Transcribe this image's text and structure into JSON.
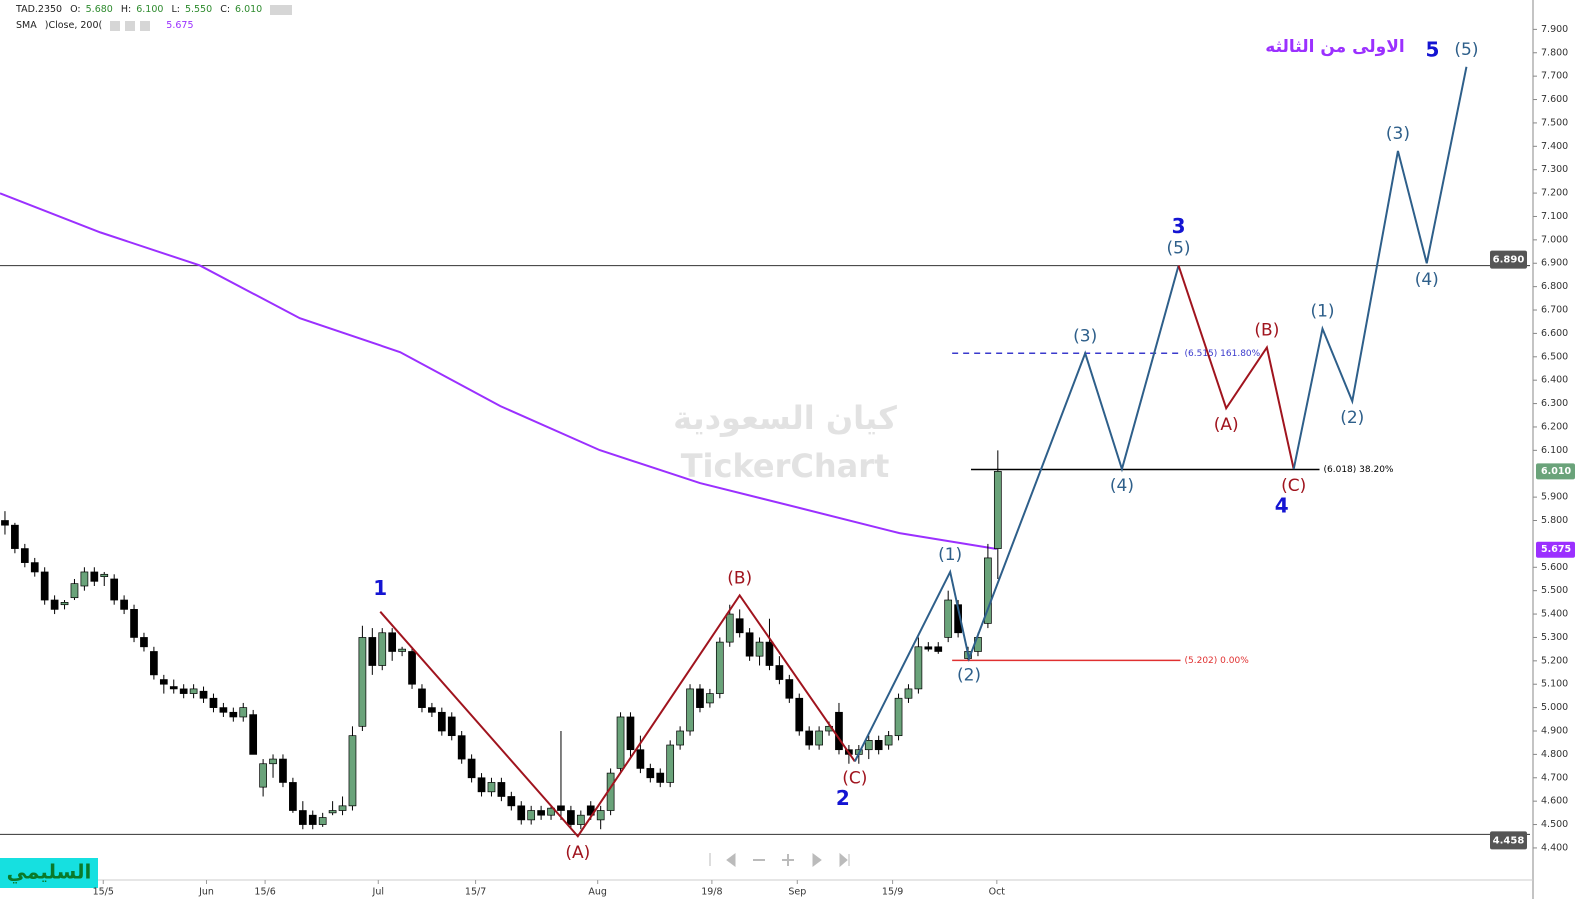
{
  "header": {
    "line1": [
      "TAD.2350",
      "O:",
      "5.680",
      "H:",
      "6.100",
      "L:",
      "5.550",
      "C:",
      "6.010"
    ],
    "line2": [
      "SMA",
      ")Close, 200(",
      "5.675"
    ]
  },
  "watermark": [
    "كيان السعودية",
    "TickerChart"
  ],
  "author": "السليمي",
  "chart_data": {
    "type": "candlestick",
    "title": "الاولى من الثالثه",
    "xlim": [
      -0.5,
      153.6
    ],
    "ylim": [
      4.28,
      7.97
    ],
    "xticks": [
      {
        "value": 9.9,
        "label": "15/5"
      },
      {
        "value": 20.3,
        "label": "Jun"
      },
      {
        "value": 26.2,
        "label": "15/6"
      },
      {
        "value": 37.6,
        "label": "Jul"
      },
      {
        "value": 47.4,
        "label": "15/7"
      },
      {
        "value": 59.7,
        "label": "Aug"
      },
      {
        "value": 71.2,
        "label": "19/8"
      },
      {
        "value": 79.8,
        "label": "Sep"
      },
      {
        "value": 89.4,
        "label": "15/9"
      },
      {
        "value": 99.9,
        "label": "Oct"
      }
    ],
    "yticks": [
      {
        "value": 4.4,
        "label": "4.400"
      },
      {
        "value": 4.5,
        "label": "4.500"
      },
      {
        "value": 4.6,
        "label": "4.600"
      },
      {
        "value": 4.7,
        "label": "4.700"
      },
      {
        "value": 4.8,
        "label": "4.800"
      },
      {
        "value": 4.9,
        "label": "4.900"
      },
      {
        "value": 5.0,
        "label": "5.000"
      },
      {
        "value": 5.1,
        "label": "5.100"
      },
      {
        "value": 5.2,
        "label": "5.200"
      },
      {
        "value": 5.3,
        "label": "5.300"
      },
      {
        "value": 5.4,
        "label": "5.400"
      },
      {
        "value": 5.5,
        "label": "5.500"
      },
      {
        "value": 5.6,
        "label": "5.600"
      },
      {
        "value": 5.8,
        "label": "5.800"
      },
      {
        "value": 5.9,
        "label": "5.900"
      },
      {
        "value": 6.1,
        "label": "6.100"
      },
      {
        "value": 6.2,
        "label": "6.200"
      },
      {
        "value": 6.3,
        "label": "6.300"
      },
      {
        "value": 6.4,
        "label": "6.400"
      },
      {
        "value": 6.5,
        "label": "6.500"
      },
      {
        "value": 6.6,
        "label": "6.600"
      },
      {
        "value": 6.7,
        "label": "6.700"
      },
      {
        "value": 6.8,
        "label": "6.800"
      },
      {
        "value": 6.9,
        "label": "6.900"
      },
      {
        "value": 7.0,
        "label": "7.000"
      },
      {
        "value": 7.1,
        "label": "7.100"
      },
      {
        "value": 7.2,
        "label": "7.200"
      },
      {
        "value": 7.3,
        "label": "7.300"
      },
      {
        "value": 7.4,
        "label": "7.400"
      },
      {
        "value": 7.5,
        "label": "7.500"
      },
      {
        "value": 7.6,
        "label": "7.600"
      },
      {
        "value": 7.7,
        "label": "7.700"
      },
      {
        "value": 7.8,
        "label": "7.800"
      },
      {
        "value": 7.9,
        "label": "7.900"
      }
    ],
    "up_color": "#6aa37a",
    "down_color": "#000000",
    "candles": {
      "open": [
        5.8,
        5.78,
        5.68,
        5.62,
        5.58,
        5.46,
        5.44,
        5.47,
        5.52,
        5.58,
        5.56,
        5.55,
        5.46,
        5.42,
        5.3,
        5.24,
        5.12,
        5.09,
        5.08,
        5.06,
        5.07,
        5.04,
        5.0,
        4.98,
        4.96,
        4.97,
        4.66,
        4.76,
        4.78,
        4.68,
        4.56,
        4.54,
        4.5,
        4.55,
        4.56,
        4.58,
        4.92,
        5.3,
        5.18,
        5.32,
        5.24,
        5.24,
        5.08,
        5.0,
        4.98,
        4.96,
        4.88,
        4.78,
        4.7,
        4.64,
        4.68,
        4.62,
        4.58,
        4.52,
        4.56,
        4.54,
        4.58,
        4.56,
        4.5,
        4.58,
        4.52,
        4.56,
        4.74,
        4.96,
        4.82,
        4.74,
        4.72,
        4.68,
        4.84,
        4.9,
        5.08,
        5.02,
        5.06,
        5.28,
        5.38,
        5.32,
        5.22,
        5.28,
        5.18,
        5.12,
        5.04,
        4.9,
        4.84,
        4.9,
        4.98,
        4.82,
        4.8,
        4.82,
        4.86,
        4.84,
        4.88,
        5.04,
        5.08,
        5.26,
        5.26,
        5.3,
        5.44,
        5.21,
        5.24,
        5.36,
        5.68
      ],
      "high": [
        5.84,
        5.79,
        5.7,
        5.64,
        5.6,
        5.48,
        5.46,
        5.55,
        5.6,
        5.6,
        5.58,
        5.57,
        5.48,
        5.44,
        5.32,
        5.26,
        5.14,
        5.12,
        5.1,
        5.1,
        5.09,
        5.06,
        5.02,
        5.0,
        5.02,
        4.99,
        4.78,
        4.8,
        4.8,
        4.7,
        4.6,
        4.56,
        4.55,
        4.6,
        4.62,
        4.92,
        5.35,
        5.34,
        5.34,
        5.34,
        5.26,
        5.26,
        5.1,
        5.02,
        5.0,
        4.98,
        4.9,
        4.8,
        4.72,
        4.7,
        4.7,
        4.64,
        4.6,
        4.58,
        4.58,
        4.58,
        4.9,
        4.58,
        4.56,
        4.6,
        4.58,
        4.74,
        4.98,
        4.98,
        4.88,
        4.76,
        4.74,
        4.86,
        4.92,
        5.1,
        5.1,
        5.08,
        5.3,
        5.44,
        5.42,
        5.34,
        5.3,
        5.38,
        5.22,
        5.14,
        5.06,
        4.92,
        4.92,
        4.94,
        5.02,
        4.84,
        4.84,
        4.88,
        4.88,
        4.9,
        5.06,
        5.1,
        5.3,
        5.28,
        5.28,
        5.5,
        5.46,
        5.26,
        5.32,
        5.7,
        6.1
      ],
      "low": [
        5.74,
        5.66,
        5.6,
        5.56,
        5.44,
        5.4,
        5.42,
        5.46,
        5.5,
        5.52,
        5.52,
        5.44,
        5.4,
        5.28,
        5.24,
        5.12,
        5.06,
        5.06,
        5.04,
        5.04,
        5.02,
        4.98,
        4.96,
        4.94,
        4.94,
        4.8,
        4.62,
        4.7,
        4.66,
        4.55,
        4.48,
        4.48,
        4.49,
        4.54,
        4.54,
        4.56,
        4.9,
        5.14,
        5.16,
        5.2,
        5.22,
        5.08,
        4.98,
        4.96,
        4.88,
        4.86,
        4.76,
        4.68,
        4.62,
        4.62,
        4.6,
        4.56,
        4.5,
        4.5,
        4.52,
        4.52,
        4.52,
        4.48,
        4.48,
        4.52,
        4.48,
        4.54,
        4.72,
        4.78,
        4.72,
        4.68,
        4.66,
        4.66,
        4.82,
        4.88,
        4.98,
        5.0,
        5.04,
        5.26,
        5.3,
        5.2,
        5.18,
        5.16,
        5.1,
        5.02,
        4.88,
        4.82,
        4.82,
        4.88,
        4.8,
        4.76,
        4.76,
        4.78,
        4.8,
        4.82,
        4.86,
        5.02,
        5.06,
        5.24,
        5.23,
        5.28,
        5.3,
        5.2,
        5.22,
        5.34,
        5.55
      ],
      "close": [
        5.78,
        5.68,
        5.62,
        5.58,
        5.46,
        5.42,
        5.45,
        5.53,
        5.58,
        5.54,
        5.57,
        5.46,
        5.42,
        5.3,
        5.26,
        5.14,
        5.1,
        5.08,
        5.06,
        5.08,
        5.04,
        5.0,
        4.98,
        4.96,
        5.0,
        4.8,
        4.76,
        4.78,
        4.68,
        4.56,
        4.5,
        4.5,
        4.53,
        4.56,
        4.58,
        4.88,
        5.3,
        5.18,
        5.32,
        5.24,
        5.25,
        5.1,
        5.0,
        4.98,
        4.9,
        4.88,
        4.78,
        4.7,
        4.64,
        4.68,
        4.62,
        4.58,
        4.52,
        4.56,
        4.54,
        4.57,
        4.56,
        4.5,
        4.54,
        4.54,
        4.56,
        4.72,
        4.96,
        4.82,
        4.74,
        4.7,
        4.68,
        4.84,
        4.9,
        5.08,
        5.0,
        5.06,
        5.28,
        5.4,
        5.32,
        5.22,
        5.28,
        5.18,
        5.12,
        5.04,
        4.9,
        4.84,
        4.9,
        4.92,
        4.82,
        4.8,
        4.82,
        4.86,
        4.82,
        4.88,
        5.04,
        5.08,
        5.26,
        5.25,
        5.24,
        5.46,
        5.32,
        5.24,
        5.3,
        5.64,
        6.01
      ]
    },
    "sma": {
      "color": "#9b30ff",
      "x": [
        -0.5,
        9.6,
        19.6,
        29.7,
        39.8,
        49.9,
        59.9,
        70,
        80.1,
        90.1,
        99.9
      ],
      "values": [
        7.199,
        7.032,
        6.891,
        6.665,
        6.52,
        6.289,
        6.101,
        5.96,
        5.853,
        5.746,
        5.678
      ]
    },
    "waves": [
      {
        "color": "#a0141e",
        "degree_color": "#1414d2",
        "x": [
          37.8,
          57.7,
          74,
          85.6
        ],
        "y": [
          5.41,
          4.45,
          5.48,
          4.77
        ],
        "labels": [
          null,
          "(A)",
          "(B)",
          "(C)"
        ],
        "degrees": [
          "1",
          null,
          null,
          "2"
        ]
      },
      {
        "color": "#2e5f8a",
        "degree_color": "#1414d2",
        "x": [
          85.6,
          95.2,
          97.1,
          108.8,
          112.5,
          118.2
        ],
        "y": [
          4.77,
          5.58,
          5.21,
          6.515,
          6.02,
          6.89
        ],
        "labels": [
          null,
          "(1)",
          "(2)",
          "(3)",
          "(4)",
          "(5)"
        ],
        "degrees": [
          null,
          null,
          null,
          null,
          null,
          "3"
        ]
      },
      {
        "color": "#a0141e",
        "degree_color": "#1414d2",
        "x": [
          118.2,
          123,
          127.1,
          129.8
        ],
        "y": [
          6.89,
          6.28,
          6.54,
          6.02
        ],
        "labels": [
          null,
          "(A)",
          "(B)",
          "(C)"
        ],
        "degrees": [
          null,
          null,
          null,
          "4"
        ]
      },
      {
        "color": "#2e5f8a",
        "degree_color": "#1414d2",
        "x": [
          129.8,
          132.7,
          135.7,
          140.3,
          143.2,
          147.2
        ],
        "y": [
          6.02,
          6.62,
          6.31,
          7.38,
          6.9,
          7.74
        ],
        "labels": [
          null,
          "(1)",
          "(2)",
          "(3)",
          "(4)",
          "(5)"
        ],
        "degrees": [
          null,
          null,
          null,
          null,
          null,
          "5"
        ]
      }
    ],
    "levels": [
      {
        "value": 6.515,
        "label": "(6.515) 161.80%",
        "color": "#3a3acc",
        "dashed": true,
        "x": [
          95.4,
          118.4
        ]
      },
      {
        "value": 6.018,
        "label": "(6.018) 38.20%",
        "color": "#000000",
        "dashed": false,
        "x": [
          97.3,
          132.4
        ]
      },
      {
        "value": 5.202,
        "label": "(5.202) 0.00%",
        "color": "#e03030",
        "dashed": false,
        "x": [
          95.4,
          118.4
        ]
      }
    ],
    "hlines": [
      {
        "value": 6.89,
        "label": "6.890"
      },
      {
        "value": 4.458,
        "label": "4.458"
      }
    ],
    "price_tags": [
      {
        "value": 6.01,
        "label": "6.010",
        "color": "#6aa37a"
      },
      {
        "value": 5.675,
        "label": "5.675",
        "color": "#9b30ff"
      }
    ]
  }
}
